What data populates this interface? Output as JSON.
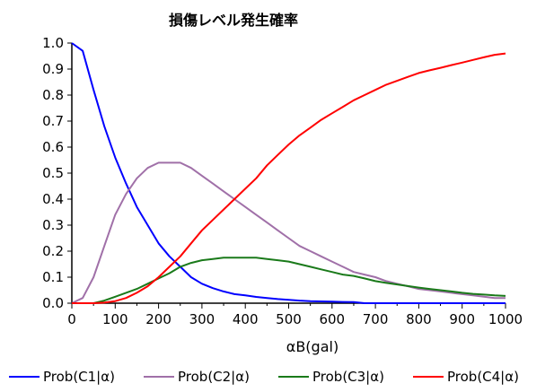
{
  "chart_data": {
    "type": "line",
    "title": "損傷レベル発生確率",
    "xlabel": "αB(gal)",
    "ylabel": "",
    "xlim": [
      0,
      1000
    ],
    "ylim": [
      0,
      1.0
    ],
    "x_ticks": [
      "0",
      "100",
      "200",
      "300",
      "400",
      "500",
      "600",
      "700",
      "800",
      "900",
      "1000"
    ],
    "y_ticks": [
      "0.0",
      "0.1",
      "0.2",
      "0.3",
      "0.4",
      "0.5",
      "0.6",
      "0.7",
      "0.8",
      "0.9",
      "1.0"
    ],
    "grid": false,
    "legend_position": "bottom",
    "x": [
      0,
      25,
      50,
      75,
      100,
      125,
      150,
      175,
      200,
      225,
      250,
      275,
      300,
      325,
      350,
      375,
      400,
      425,
      450,
      475,
      500,
      525,
      550,
      575,
      600,
      625,
      650,
      675,
      700,
      725,
      750,
      775,
      800,
      825,
      850,
      875,
      900,
      925,
      950,
      975,
      1000
    ],
    "series": [
      {
        "name": "Prob(C1|α)",
        "color": "#0000ff",
        "values": [
          1.0,
          0.97,
          0.82,
          0.68,
          0.56,
          0.46,
          0.37,
          0.3,
          0.23,
          0.18,
          0.14,
          0.1,
          0.075,
          0.058,
          0.045,
          0.035,
          0.03,
          0.024,
          0.02,
          0.016,
          0.013,
          0.01,
          0.008,
          0.007,
          0.006,
          0.005,
          0.004,
          0.0,
          0.0,
          0.0,
          0.0,
          0.0,
          0.0,
          0.0,
          0.0,
          0.0,
          0.0,
          0.0,
          0.0,
          0.0,
          0.0
        ]
      },
      {
        "name": "Prob(C2|α)",
        "color": "#a070a8",
        "values": [
          0.0,
          0.02,
          0.1,
          0.22,
          0.34,
          0.42,
          0.48,
          0.52,
          0.54,
          0.54,
          0.54,
          0.52,
          0.49,
          0.46,
          0.43,
          0.4,
          0.37,
          0.34,
          0.31,
          0.28,
          0.25,
          0.22,
          0.2,
          0.18,
          0.16,
          0.14,
          0.12,
          0.11,
          0.1,
          0.085,
          0.075,
          0.065,
          0.055,
          0.05,
          0.045,
          0.04,
          0.035,
          0.03,
          0.025,
          0.02,
          0.02
        ]
      },
      {
        "name": "Prob(C3|α)",
        "color": "#1a7a1a",
        "values": [
          0.0,
          0.0,
          0.0,
          0.01,
          0.025,
          0.04,
          0.055,
          0.075,
          0.095,
          0.115,
          0.14,
          0.155,
          0.165,
          0.17,
          0.175,
          0.175,
          0.175,
          0.175,
          0.17,
          0.165,
          0.16,
          0.15,
          0.14,
          0.13,
          0.12,
          0.11,
          0.105,
          0.095,
          0.085,
          0.078,
          0.072,
          0.066,
          0.06,
          0.055,
          0.05,
          0.045,
          0.04,
          0.036,
          0.033,
          0.03,
          0.028
        ]
      },
      {
        "name": "Prob(C4|α)",
        "color": "#ff0000",
        "values": [
          0.0,
          0.0,
          0.0,
          0.002,
          0.008,
          0.02,
          0.04,
          0.065,
          0.1,
          0.14,
          0.18,
          0.23,
          0.28,
          0.32,
          0.36,
          0.4,
          0.44,
          0.48,
          0.53,
          0.57,
          0.61,
          0.645,
          0.675,
          0.705,
          0.73,
          0.755,
          0.78,
          0.8,
          0.82,
          0.84,
          0.855,
          0.87,
          0.885,
          0.895,
          0.905,
          0.915,
          0.925,
          0.935,
          0.945,
          0.955,
          0.96
        ]
      }
    ]
  }
}
